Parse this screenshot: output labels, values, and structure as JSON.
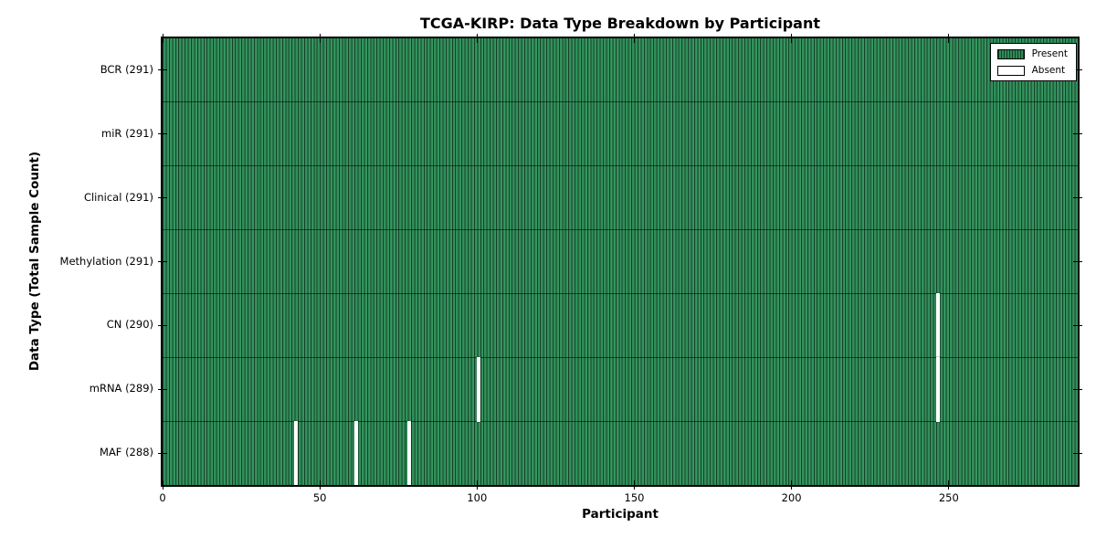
{
  "figure": {
    "background": "#ffffff"
  },
  "chart_data": {
    "type": "heatmap",
    "title": "TCGA-KIRP: Data Type Breakdown by Participant",
    "xlabel": "Participant",
    "ylabel": "Data Type (Total Sample Count)",
    "x_ticks": [
      0,
      50,
      100,
      150,
      200,
      250
    ],
    "x_range": [
      0,
      291
    ],
    "n_participants": 291,
    "grid": "row-boundaries",
    "legend_position": "upper-right",
    "rows": [
      {
        "name": "BCR",
        "label": "BCR (291)",
        "total": 291,
        "absent_participants": []
      },
      {
        "name": "miR",
        "label": "miR (291)",
        "total": 291,
        "absent_participants": []
      },
      {
        "name": "Clinical",
        "label": "Clinical (291)",
        "total": 291,
        "absent_participants": []
      },
      {
        "name": "Methylation",
        "label": "Methylation (291)",
        "total": 291,
        "absent_participants": []
      },
      {
        "name": "CN",
        "label": "CN (290)",
        "total": 290,
        "absent_participants": [
          246
        ]
      },
      {
        "name": "mRNA",
        "label": "mRNA (289)",
        "total": 289,
        "absent_participants": [
          100,
          246
        ]
      },
      {
        "name": "MAF",
        "label": "MAF (288)",
        "total": 288,
        "absent_participants": [
          42,
          61,
          78
        ]
      }
    ],
    "legend": [
      {
        "label": "Present",
        "color": "#2e8b57"
      },
      {
        "label": "Absent",
        "color": "#ffffff"
      }
    ],
    "colors": {
      "present": "#2e8b57",
      "present_edge": "#17402a",
      "present_highlight": "#389a63",
      "absent": "#ffffff",
      "row_boundary": "rgba(0,0,0,0.55)",
      "axis": "#000000"
    }
  }
}
